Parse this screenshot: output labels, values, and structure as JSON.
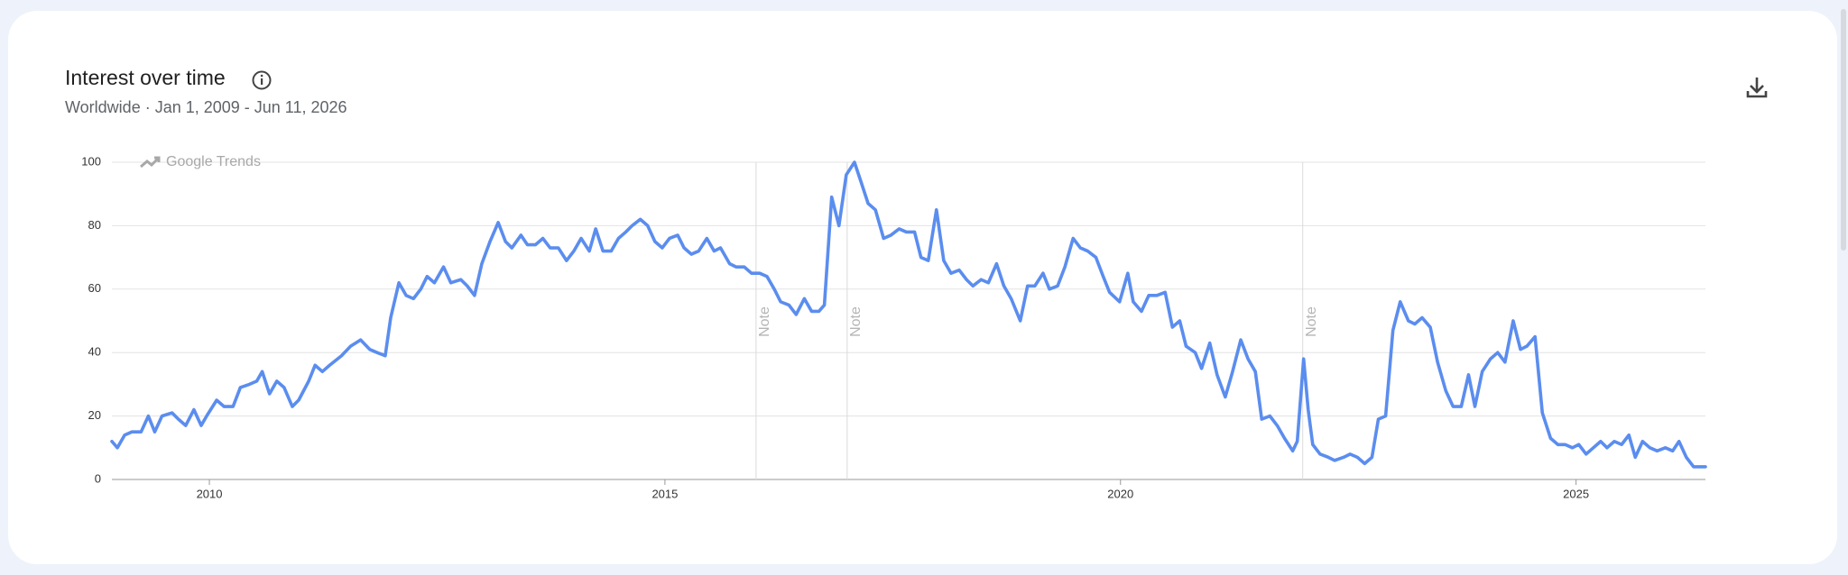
{
  "chart_data": {
    "type": "line",
    "title": "Interest over time",
    "subtitle": "Worldwide · Jan 1, 2009 - Jun 11, 2026",
    "watermark": "Google Trends",
    "annotations": [
      {
        "x": 2016.0,
        "label": "Note"
      },
      {
        "x": 2017.0,
        "label": "Note"
      },
      {
        "x": 2022.0,
        "label": "Note"
      }
    ],
    "xlim": [
      2008.93,
      2026.42
    ],
    "xticks": [
      2010,
      2015,
      2020,
      2025
    ],
    "ylim": [
      0,
      100
    ],
    "yticks": [
      0,
      20,
      40,
      60,
      80,
      100
    ],
    "grid": true,
    "x": [
      2008.93,
      2008.99,
      2009.07,
      2009.15,
      2009.25,
      2009.33,
      2009.4,
      2009.48,
      2009.59,
      2009.66,
      2009.74,
      2009.83,
      2009.91,
      2009.97,
      2010.08,
      2010.16,
      2010.26,
      2010.34,
      2010.44,
      2010.52,
      2010.58,
      2010.66,
      2010.74,
      2010.82,
      2010.91,
      2010.98,
      2011.09,
      2011.16,
      2011.24,
      2011.32,
      2011.45,
      2011.55,
      2011.66,
      2011.76,
      2011.84,
      2011.93,
      2011.99,
      2012.08,
      2012.16,
      2012.24,
      2012.32,
      2012.39,
      2012.47,
      2012.57,
      2012.65,
      2012.76,
      2012.83,
      2012.91,
      2012.99,
      2013.08,
      2013.17,
      2013.25,
      2013.32,
      2013.42,
      2013.49,
      2013.58,
      2013.66,
      2013.74,
      2013.83,
      2013.92,
      2014.0,
      2014.08,
      2014.17,
      2014.24,
      2014.32,
      2014.41,
      2014.49,
      2014.57,
      2014.64,
      2014.73,
      2014.81,
      2014.89,
      2014.97,
      2015.05,
      2015.14,
      2015.21,
      2015.29,
      2015.37,
      2015.46,
      2015.54,
      2015.61,
      2015.71,
      2015.78,
      2015.87,
      2015.95,
      2016.04,
      2016.12,
      2016.2,
      2016.27,
      2016.36,
      2016.44,
      2016.53,
      2016.61,
      2016.69,
      2016.75,
      2016.83,
      2016.91,
      2016.99,
      2017.08,
      2017.15,
      2017.23,
      2017.31,
      2017.4,
      2017.48,
      2017.57,
      2017.65,
      2017.74,
      2017.81,
      2017.89,
      2017.98,
      2018.06,
      2018.14,
      2018.23,
      2018.31,
      2018.38,
      2018.47,
      2018.55,
      2018.64,
      2018.72,
      2018.8,
      2018.9,
      2018.98,
      2019.06,
      2019.15,
      2019.22,
      2019.31,
      2019.39,
      2019.48,
      2019.56,
      2019.64,
      2019.73,
      2019.81,
      2019.88,
      2019.99,
      2020.08,
      2020.14,
      2020.23,
      2020.31,
      2020.4,
      2020.49,
      2020.57,
      2020.65,
      2020.72,
      2020.82,
      2020.89,
      2020.98,
      2021.06,
      2021.15,
      2021.23,
      2021.32,
      2021.4,
      2021.48,
      2021.55,
      2021.64,
      2021.72,
      2021.8,
      2021.89,
      2021.94,
      2022.01,
      2022.06,
      2022.11,
      2022.19,
      2022.28,
      2022.35,
      2022.45,
      2022.52,
      2022.6,
      2022.68,
      2022.76,
      2022.83,
      2022.91,
      2022.99,
      2023.07,
      2023.16,
      2023.23,
      2023.31,
      2023.4,
      2023.48,
      2023.57,
      2023.65,
      2023.74,
      2023.82,
      2023.89,
      2023.97,
      2024.06,
      2024.14,
      2024.22,
      2024.31,
      2024.39,
      2024.46,
      2024.55,
      2024.63,
      2024.72,
      2024.8,
      2024.88,
      2024.96,
      2025.03,
      2025.11,
      2025.19,
      2025.27,
      2025.34,
      2025.42,
      2025.5,
      2025.58,
      2025.65,
      2025.73,
      2025.81,
      2025.89,
      2025.98,
      2026.06,
      2026.13,
      2026.21,
      2026.29,
      2026.42
    ],
    "series": [
      {
        "color": "#5b8def",
        "values": [
          12,
          10,
          14,
          15,
          15,
          20,
          15,
          20,
          21,
          19,
          17,
          22,
          17,
          20,
          25,
          23,
          23,
          29,
          30,
          31,
          34,
          27,
          31,
          29,
          23,
          25,
          31,
          36,
          34,
          36,
          39,
          42,
          44,
          41,
          40,
          39,
          51,
          62,
          58,
          57,
          60,
          64,
          62,
          67,
          62,
          63,
          61,
          58,
          68,
          75,
          81,
          75,
          73,
          77,
          74,
          74,
          76,
          73,
          73,
          69,
          72,
          76,
          72,
          79,
          72,
          72,
          76,
          78,
          80,
          82,
          80,
          75,
          73,
          76,
          77,
          73,
          71,
          72,
          76,
          72,
          73,
          68,
          67,
          67,
          65,
          65,
          64,
          60,
          56,
          55,
          52,
          57,
          53,
          53,
          55,
          89,
          80,
          96,
          100,
          94,
          87,
          85,
          76,
          77,
          79,
          78,
          78,
          70,
          69,
          85,
          69,
          65,
          66,
          63,
          61,
          63,
          62,
          68,
          61,
          57,
          50,
          61,
          61,
          65,
          60,
          61,
          67,
          76,
          73,
          72,
          70,
          64,
          59,
          56,
          65,
          56,
          53,
          58,
          58,
          59,
          48,
          50,
          42,
          40,
          35,
          43,
          33,
          26,
          34,
          44,
          38,
          34,
          19,
          20,
          17,
          13,
          9,
          12,
          38,
          22,
          11,
          8,
          7,
          6,
          7,
          8,
          7,
          5,
          7,
          19,
          20,
          47,
          56,
          50,
          49,
          51,
          48,
          37,
          28,
          23,
          23,
          33,
          23,
          34,
          38,
          40,
          37,
          50,
          41,
          42,
          45,
          21,
          13,
          11,
          11,
          10,
          11,
          8,
          10,
          12,
          10,
          12,
          11,
          14,
          7,
          12,
          10,
          9,
          10,
          9,
          12,
          7,
          4,
          4
        ]
      }
    ]
  }
}
